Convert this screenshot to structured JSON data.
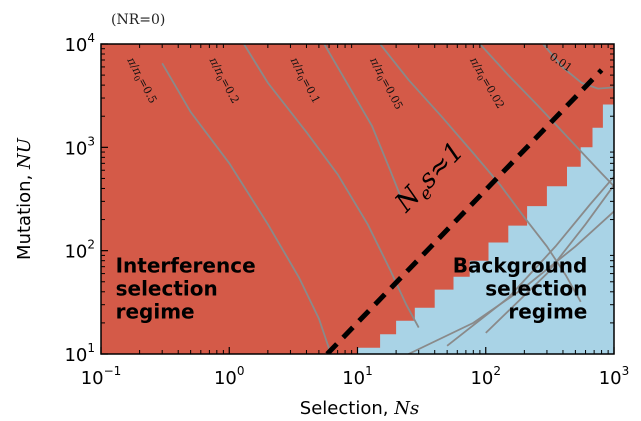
{
  "chart_data": {
    "type": "heatmap",
    "title": "(NR=0)",
    "xlabel": {
      "text": "Selection, ",
      "var": "Ns"
    },
    "ylabel": {
      "text": "Mutation, ",
      "var": "NU"
    },
    "xscale": "log",
    "yscale": "log",
    "xlim": [
      0.1,
      1000
    ],
    "ylim": [
      10,
      10000
    ],
    "xticks": [
      {
        "value": 0.1,
        "base": "10",
        "exp": "−1"
      },
      {
        "value": 1,
        "base": "10",
        "exp": "0"
      },
      {
        "value": 10,
        "base": "10",
        "exp": "1"
      },
      {
        "value": 100,
        "base": "10",
        "exp": "2"
      },
      {
        "value": 1000,
        "base": "10",
        "exp": "3"
      }
    ],
    "yticks": [
      {
        "value": 10,
        "base": "10",
        "exp": "1"
      },
      {
        "value": 100,
        "base": "10",
        "exp": "2"
      },
      {
        "value": 1000,
        "base": "10",
        "exp": "3"
      },
      {
        "value": 10000,
        "base": "10",
        "exp": "4"
      }
    ],
    "regions": [
      {
        "name": "Interference selection regime",
        "lines": [
          "Interference",
          "selection",
          "regime"
        ],
        "color": "#d45a48",
        "label_at": {
          "x": 0.13,
          "y": 22
        }
      },
      {
        "name": "Background selection regime",
        "lines": [
          "Background",
          "selection",
          "regime"
        ],
        "color": "#a9d3e6",
        "label_at": {
          "x": 620,
          "y": 22
        }
      }
    ],
    "boundary_steps": [
      [
        10,
        10
      ],
      [
        10,
        11.5
      ],
      [
        15,
        11.5
      ],
      [
        15,
        15.5
      ],
      [
        20,
        15.5
      ],
      [
        20,
        21
      ],
      [
        28,
        21
      ],
      [
        28,
        28
      ],
      [
        40,
        28
      ],
      [
        40,
        42
      ],
      [
        56,
        42
      ],
      [
        56,
        56
      ],
      [
        75,
        56
      ],
      [
        75,
        80
      ],
      [
        105,
        80
      ],
      [
        105,
        120
      ],
      [
        150,
        120
      ],
      [
        150,
        175
      ],
      [
        210,
        175
      ],
      [
        210,
        270
      ],
      [
        300,
        270
      ],
      [
        300,
        420
      ],
      [
        430,
        420
      ],
      [
        430,
        650
      ],
      [
        550,
        650
      ],
      [
        550,
        1000
      ],
      [
        680,
        1000
      ],
      [
        680,
        1550
      ],
      [
        820,
        1550
      ],
      [
        820,
        2600
      ],
      [
        1000,
        2600
      ]
    ],
    "dashed_line": {
      "label_base": "N",
      "label_sub": "e",
      "label_rest": "s≈1",
      "label_at": {
        "x": 24,
        "y": 230
      },
      "points": [
        [
          5.8,
          10
        ],
        [
          800,
          5600
        ]
      ]
    },
    "contours": [
      {
        "label": "0.5",
        "points": [
          [
            0.3,
            6500
          ],
          [
            0.5,
            2200
          ],
          [
            1,
            700
          ],
          [
            2,
            180
          ],
          [
            3.5,
            55
          ],
          [
            5,
            22
          ],
          [
            6.2,
            10
          ]
        ]
      },
      {
        "label": "0.2",
        "points": [
          [
            1.3,
            10000
          ],
          [
            2,
            4200
          ],
          [
            4,
            1400
          ],
          [
            7,
            550
          ],
          [
            12,
            180
          ],
          [
            18,
            65
          ],
          [
            24,
            30
          ],
          [
            30,
            18
          ]
        ]
      },
      {
        "label": "0.1",
        "points": [
          [
            5.5,
            10000
          ],
          [
            8,
            4500
          ],
          [
            13,
            1600
          ],
          [
            18,
            600
          ],
          [
            22,
            320
          ]
        ]
      },
      {
        "label": "0.05",
        "points": [
          [
            15,
            10000
          ],
          [
            25,
            4500
          ],
          [
            45,
            2000
          ],
          [
            80,
            880
          ],
          [
            130,
            430
          ],
          [
            200,
            210
          ],
          [
            300,
            110
          ],
          [
            420,
            58
          ],
          [
            550,
            32
          ]
        ]
      },
      {
        "label": "0.02",
        "points": [
          [
            90,
            10000
          ],
          [
            150,
            5000
          ],
          [
            250,
            2600
          ],
          [
            400,
            1400
          ],
          [
            600,
            820
          ],
          [
            800,
            560
          ],
          [
            1000,
            420
          ]
        ]
      },
      {
        "label": "0.01",
        "points": [
          [
            280,
            10000
          ],
          [
            400,
            5900
          ],
          [
            560,
            4200
          ],
          [
            750,
            3700
          ],
          [
            1000,
            3800
          ]
        ]
      },
      {
        "label": "",
        "points": [
          [
            25,
            10
          ],
          [
            80,
            20
          ],
          [
            200,
            44
          ],
          [
            500,
            110
          ],
          [
            1000,
            240
          ]
        ]
      },
      {
        "label": "",
        "points": [
          [
            50,
            12
          ],
          [
            150,
            35
          ],
          [
            350,
            110
          ],
          [
            650,
            280
          ],
          [
            1000,
            520
          ]
        ]
      },
      {
        "label": "",
        "points": [
          [
            100,
            16
          ],
          [
            300,
            60
          ],
          [
            600,
            180
          ],
          [
            1000,
            430
          ]
        ]
      }
    ],
    "contour_label_prefix": {
      "num": "π",
      "den": "π",
      "den_sub": "0",
      "eq": "="
    },
    "contour_labels_at": [
      {
        "idx": 0,
        "x": 0.16,
        "y": 7000,
        "angle": 62
      },
      {
        "idx": 1,
        "x": 0.7,
        "y": 7000,
        "angle": 62
      },
      {
        "idx": 2,
        "x": 3.0,
        "y": 7000,
        "angle": 62
      },
      {
        "idx": 3,
        "x": 12.5,
        "y": 7000,
        "angle": 62
      },
      {
        "idx": 4,
        "x": 75,
        "y": 7000,
        "angle": 60
      },
      {
        "idx": 5,
        "x": 310,
        "y": 7300,
        "angle": 35
      }
    ],
    "colors": {
      "interference": "#d45a48",
      "background": "#a9d3e6",
      "contour": "#8a8a8a",
      "dashed": "#000000",
      "axis": "#000000"
    }
  }
}
